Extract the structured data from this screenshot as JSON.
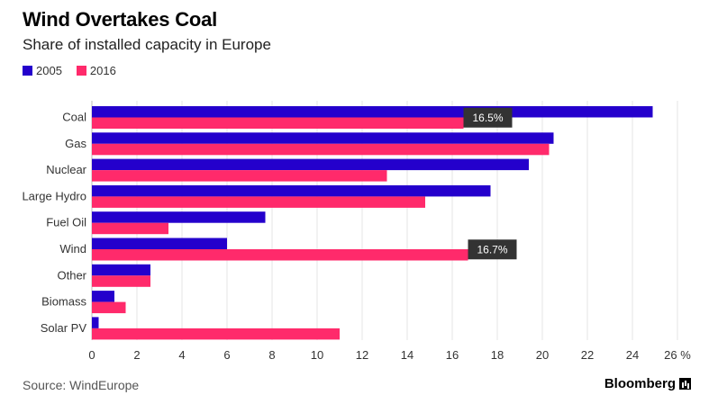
{
  "header": {
    "title": "Wind Overtakes Coal",
    "subtitle": "Share of installed capacity in Europe"
  },
  "footer": {
    "source": "Source: WindEurope",
    "brand": "Bloomberg"
  },
  "chart_data": {
    "type": "bar",
    "orientation": "horizontal",
    "categories": [
      "Coal",
      "Gas",
      "Nuclear",
      "Large Hydro",
      "Fuel Oil",
      "Wind",
      "Other",
      "Biomass",
      "Solar PV"
    ],
    "series": [
      {
        "name": "2005",
        "color": "#2400cc",
        "values": [
          24.9,
          20.5,
          19.4,
          17.7,
          7.7,
          6.0,
          2.6,
          1.0,
          0.3
        ]
      },
      {
        "name": "2016",
        "color": "#ff2a6b",
        "values": [
          16.5,
          20.3,
          13.1,
          14.8,
          3.4,
          16.7,
          2.6,
          1.5,
          11.0
        ]
      }
    ],
    "xlim": [
      0,
      26
    ],
    "x_ticks": [
      0,
      2,
      4,
      6,
      8,
      10,
      12,
      14,
      16,
      18,
      20,
      22,
      24,
      26
    ],
    "x_tick_labels": [
      "0",
      "2",
      "4",
      "6",
      "8",
      "10",
      "12",
      "14",
      "16",
      "18",
      "20",
      "22",
      "24",
      "26 %"
    ],
    "grid": true,
    "legend_position": "top-left",
    "annotations": [
      {
        "category": "Coal",
        "series": "2016",
        "text": "16.5%"
      },
      {
        "category": "Wind",
        "series": "2016",
        "text": "16.7%"
      }
    ]
  }
}
